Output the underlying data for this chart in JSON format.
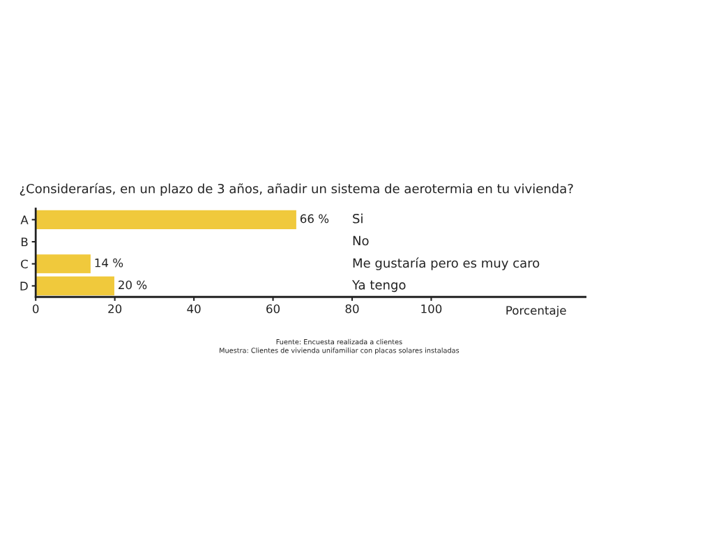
{
  "chart_data": {
    "type": "bar",
    "orientation": "horizontal",
    "title": "¿Considerarías, en un plazo de 3 años, añadir un sistema de aerotermia en tu vivienda?",
    "xlabel": "Porcentaje",
    "categories": [
      "A",
      "B",
      "C",
      "D"
    ],
    "values": [
      66,
      null,
      14,
      20
    ],
    "value_labels": [
      "66 %",
      null,
      "14 %",
      "20 %"
    ],
    "color": "#f0c93c",
    "xlim": [
      0,
      139
    ],
    "xticks": [
      0,
      20,
      40,
      60,
      80,
      100
    ],
    "grid": false,
    "annotations": [
      "Si",
      "No",
      "Me gustaría pero es muy caro",
      "Ya tengo",
      "Fuente: Encuesta realizada a clientes",
      "Muestra: Clientes de vivienda unifamiliar con placas solares instaladas"
    ]
  }
}
